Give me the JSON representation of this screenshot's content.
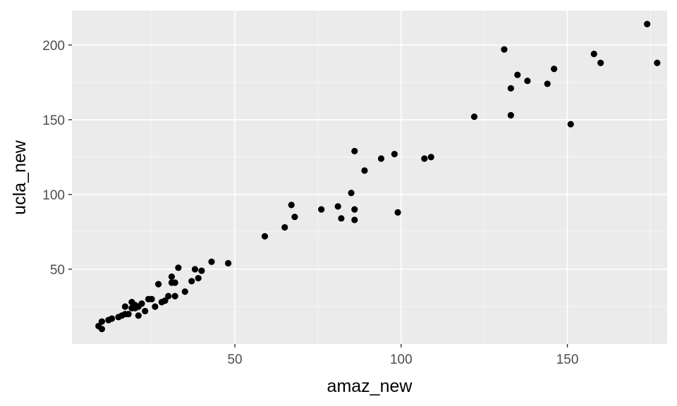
{
  "colors": {
    "panel_background": "#ebebeb",
    "grid_major": "#ffffff",
    "grid_minor": "#f5f5f5",
    "point": "#000000",
    "tick_text": "#4d4d4d",
    "tick_mark": "#333333"
  },
  "chart_data": {
    "type": "scatter",
    "title": "",
    "xlabel": "amaz_new",
    "ylabel": "ucla_new",
    "xlim": [
      1,
      180
    ],
    "ylim": [
      0,
      223
    ],
    "x_ticks": [
      50,
      100,
      150
    ],
    "y_ticks": [
      50,
      100,
      150,
      200
    ],
    "grid": true,
    "legend": "none",
    "points": [
      {
        "x": 9,
        "y": 12
      },
      {
        "x": 10,
        "y": 10
      },
      {
        "x": 10,
        "y": 15
      },
      {
        "x": 12,
        "y": 16
      },
      {
        "x": 13,
        "y": 17
      },
      {
        "x": 15,
        "y": 18
      },
      {
        "x": 16,
        "y": 19
      },
      {
        "x": 17,
        "y": 20
      },
      {
        "x": 18,
        "y": 20
      },
      {
        "x": 17,
        "y": 25
      },
      {
        "x": 19,
        "y": 24
      },
      {
        "x": 20,
        "y": 24
      },
      {
        "x": 19,
        "y": 28
      },
      {
        "x": 20,
        "y": 26
      },
      {
        "x": 21,
        "y": 19
      },
      {
        "x": 21,
        "y": 25
      },
      {
        "x": 22,
        "y": 27
      },
      {
        "x": 23,
        "y": 22
      },
      {
        "x": 24,
        "y": 30
      },
      {
        "x": 25,
        "y": 30
      },
      {
        "x": 26,
        "y": 25
      },
      {
        "x": 27,
        "y": 40
      },
      {
        "x": 28,
        "y": 28
      },
      {
        "x": 29,
        "y": 29
      },
      {
        "x": 30,
        "y": 32
      },
      {
        "x": 31,
        "y": 45
      },
      {
        "x": 31,
        "y": 41
      },
      {
        "x": 32,
        "y": 41
      },
      {
        "x": 32,
        "y": 32
      },
      {
        "x": 33,
        "y": 51
      },
      {
        "x": 35,
        "y": 35
      },
      {
        "x": 37,
        "y": 42
      },
      {
        "x": 38,
        "y": 50
      },
      {
        "x": 39,
        "y": 44
      },
      {
        "x": 40,
        "y": 49
      },
      {
        "x": 43,
        "y": 55
      },
      {
        "x": 48,
        "y": 54
      },
      {
        "x": 59,
        "y": 72
      },
      {
        "x": 65,
        "y": 78
      },
      {
        "x": 67,
        "y": 93
      },
      {
        "x": 68,
        "y": 85
      },
      {
        "x": 76,
        "y": 90
      },
      {
        "x": 81,
        "y": 92
      },
      {
        "x": 82,
        "y": 84
      },
      {
        "x": 85,
        "y": 101
      },
      {
        "x": 86,
        "y": 83
      },
      {
        "x": 86,
        "y": 90
      },
      {
        "x": 86,
        "y": 129
      },
      {
        "x": 89,
        "y": 116
      },
      {
        "x": 94,
        "y": 124
      },
      {
        "x": 98,
        "y": 127
      },
      {
        "x": 99,
        "y": 88
      },
      {
        "x": 107,
        "y": 124
      },
      {
        "x": 109,
        "y": 125
      },
      {
        "x": 122,
        "y": 152
      },
      {
        "x": 131,
        "y": 197
      },
      {
        "x": 133,
        "y": 171
      },
      {
        "x": 133,
        "y": 153
      },
      {
        "x": 135,
        "y": 180
      },
      {
        "x": 138,
        "y": 176
      },
      {
        "x": 144,
        "y": 174
      },
      {
        "x": 146,
        "y": 184
      },
      {
        "x": 151,
        "y": 147
      },
      {
        "x": 158,
        "y": 194
      },
      {
        "x": 160,
        "y": 188
      },
      {
        "x": 174,
        "y": 214
      },
      {
        "x": 177,
        "y": 188
      }
    ]
  }
}
